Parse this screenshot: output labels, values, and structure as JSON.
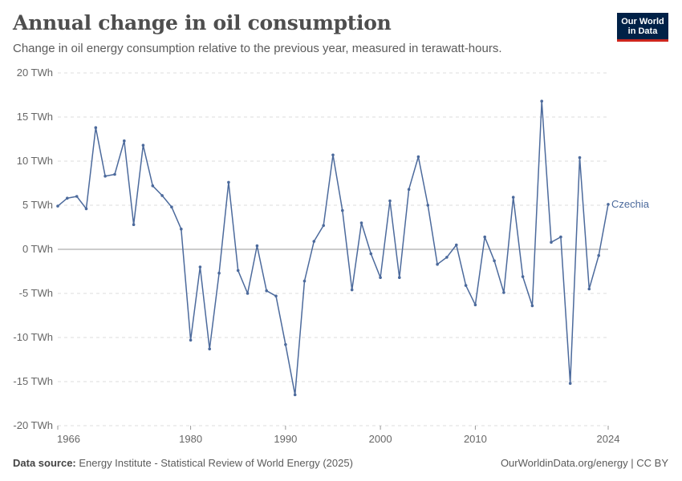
{
  "header": {
    "title": "Annual change in oil consumption",
    "subtitle": "Change in oil energy consumption relative to the previous year, measured in terawatt-hours."
  },
  "logo": {
    "line1": "Our World",
    "line2": "in Data"
  },
  "footer": {
    "source_label": "Data source:",
    "source_text": "Energy Institute - Statistical Review of World Energy (2025)",
    "right_text": "OurWorldinData.org/energy | CC BY"
  },
  "colors": {
    "series": "#4c6a9c",
    "grid": "#dddddd",
    "zero": "#999999"
  },
  "chart_data": {
    "type": "line",
    "title": "Annual change in oil consumption",
    "subtitle": "Change in oil energy consumption relative to the previous year, measured in terawatt-hours.",
    "xlim": [
      1966,
      2024
    ],
    "ylim": [
      -20,
      20
    ],
    "x_ticks": [
      {
        "value": 1966,
        "label": "1966"
      },
      {
        "value": 1980,
        "label": "1980"
      },
      {
        "value": 1990,
        "label": "1990"
      },
      {
        "value": 2000,
        "label": "2000"
      },
      {
        "value": 2010,
        "label": "2010"
      },
      {
        "value": 2024,
        "label": "2024"
      }
    ],
    "y_ticks": [
      {
        "value": 20,
        "label": "20 TWh"
      },
      {
        "value": 15,
        "label": "15 TWh"
      },
      {
        "value": 10,
        "label": "10 TWh"
      },
      {
        "value": 5,
        "label": "5 TWh"
      },
      {
        "value": 0,
        "label": "0 TWh"
      },
      {
        "value": -5,
        "label": "-5 TWh"
      },
      {
        "value": -10,
        "label": "-10 TWh"
      },
      {
        "value": -15,
        "label": "-15 TWh"
      },
      {
        "value": -20,
        "label": "-20 TWh"
      }
    ],
    "grid": "horizontal dashed",
    "series": [
      {
        "name": "Czechia",
        "x": [
          1966,
          1967,
          1968,
          1969,
          1970,
          1971,
          1972,
          1973,
          1974,
          1975,
          1976,
          1977,
          1978,
          1979,
          1980,
          1981,
          1982,
          1983,
          1984,
          1985,
          1986,
          1987,
          1988,
          1989,
          1990,
          1991,
          1992,
          1993,
          1994,
          1995,
          1996,
          1997,
          1998,
          1999,
          2000,
          2001,
          2002,
          2003,
          2004,
          2005,
          2006,
          2007,
          2008,
          2009,
          2010,
          2011,
          2012,
          2013,
          2014,
          2015,
          2016,
          2017,
          2018,
          2019,
          2020,
          2021,
          2022,
          2023,
          2024
        ],
        "y": [
          4.9,
          5.8,
          6.0,
          4.6,
          13.8,
          8.3,
          8.5,
          12.3,
          2.8,
          11.8,
          7.2,
          6.1,
          4.8,
          2.3,
          -10.3,
          -2.0,
          -11.3,
          -2.7,
          7.6,
          -2.4,
          -5.0,
          0.4,
          -4.7,
          -5.3,
          -10.8,
          -16.5,
          -3.6,
          0.9,
          2.7,
          10.7,
          4.4,
          -4.6,
          3.0,
          -0.5,
          -3.2,
          5.5,
          -3.2,
          6.8,
          10.5,
          5.0,
          -1.7,
          -0.9,
          0.5,
          -4.1,
          -6.3,
          1.4,
          -1.3,
          -4.9,
          5.9,
          -3.1,
          -6.4,
          16.8,
          0.8,
          1.4,
          -15.2,
          10.4,
          -4.5,
          -0.7,
          5.1
        ]
      }
    ]
  }
}
